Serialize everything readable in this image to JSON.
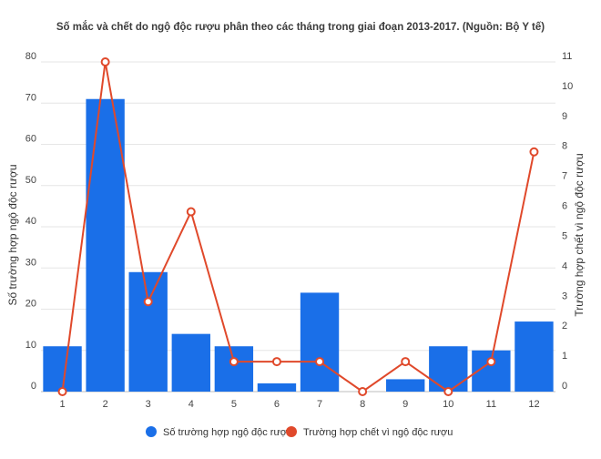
{
  "chart_data": {
    "type": "bar",
    "title": "Số mắc và chết do ngộ độc rượu phân theo các tháng trong giai đoạn 2013-2017. (Nguồn: Bộ Y tế)",
    "categories": [
      "1",
      "2",
      "3",
      "4",
      "5",
      "6",
      "7",
      "8",
      "9",
      "10",
      "11",
      "12"
    ],
    "ylabel": "Số trường hợp ngộ độc rượu",
    "y2label": "Trường hợp chết vì ngộ độc rượu",
    "ylim": [
      0,
      80
    ],
    "y2lim": [
      0,
      11
    ],
    "yticks": [
      "0",
      "10",
      "20",
      "30",
      "40",
      "50",
      "60",
      "70",
      "80"
    ],
    "y2ticks": [
      "0",
      "1",
      "2",
      "3",
      "4",
      "5",
      "6",
      "7",
      "8",
      "9",
      "10",
      "11"
    ],
    "grid": true,
    "legend_position": "bottom",
    "series": [
      {
        "name": "Số trường hợp ngộ độc rượu",
        "type": "bar",
        "axis": "left",
        "color": "#1a6fe8",
        "values": [
          11,
          71,
          29,
          14,
          11,
          2,
          24,
          0,
          3,
          11,
          10,
          17
        ]
      },
      {
        "name": "Trường hợp chết vì ngộ độc rượu",
        "type": "line",
        "axis": "right",
        "color": "#e0492b",
        "values": [
          0,
          11,
          3,
          6,
          1,
          1,
          1,
          0,
          1,
          0,
          1,
          8
        ]
      }
    ]
  }
}
